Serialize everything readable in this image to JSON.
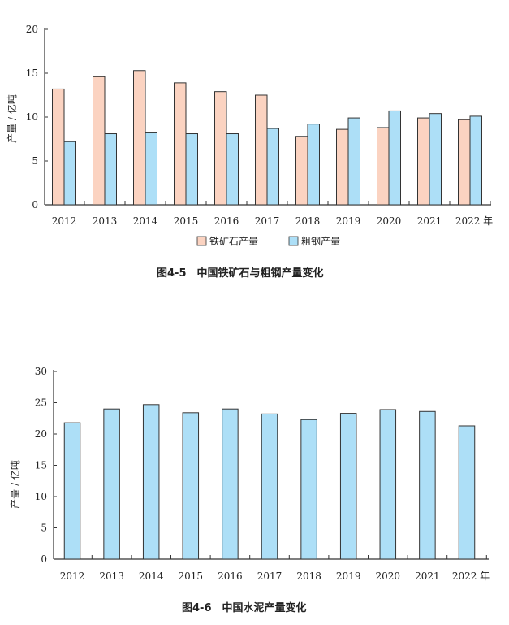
{
  "chart_data": [
    {
      "type": "bar",
      "title": "图4-5　中国铁矿石与粗钢产量变化",
      "xlabel": "年",
      "ylabel": "产量 / 亿吨",
      "ylim": [
        0,
        20
      ],
      "yticks": [
        0,
        5,
        10,
        15,
        20
      ],
      "categories": [
        "2012",
        "2013",
        "2014",
        "2015",
        "2016",
        "2017",
        "2018",
        "2019",
        "2020",
        "2021",
        "2022"
      ],
      "series": [
        {
          "name": "铁矿石产量",
          "color": "#FBD3C1",
          "values": [
            13.2,
            14.6,
            15.3,
            13.9,
            12.9,
            12.5,
            7.8,
            8.6,
            8.8,
            9.9,
            9.7
          ]
        },
        {
          "name": "粗钢产量",
          "color": "#ADDFF7",
          "values": [
            7.2,
            8.1,
            8.2,
            8.1,
            8.1,
            8.7,
            9.2,
            9.9,
            10.7,
            10.4,
            10.1
          ]
        }
      ],
      "legend": "bottom",
      "grid": false
    },
    {
      "type": "bar",
      "title": "图4-6　中国水泥产量变化",
      "xlabel": "年",
      "ylabel": "产量 / 亿吨",
      "ylim": [
        0,
        30
      ],
      "yticks": [
        0,
        5,
        10,
        15,
        20,
        25,
        30
      ],
      "categories": [
        "2012",
        "2013",
        "2014",
        "2015",
        "2016",
        "2017",
        "2018",
        "2019",
        "2020",
        "2021",
        "2022"
      ],
      "series": [
        {
          "color": "#ADDFF7",
          "values": [
            21.8,
            24.0,
            24.7,
            23.4,
            24.0,
            23.2,
            22.3,
            23.3,
            23.9,
            23.6,
            21.3
          ]
        }
      ],
      "grid": false
    }
  ]
}
